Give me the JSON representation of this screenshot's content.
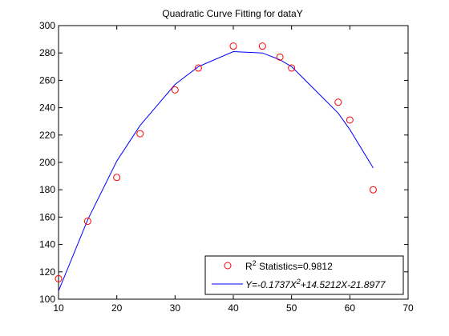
{
  "chart_data": {
    "type": "scatter",
    "title": "Quadratic Curve Fitting for dataY",
    "xlabel": "",
    "ylabel": "",
    "xlim": [
      10,
      70
    ],
    "ylim": [
      100,
      300
    ],
    "xticks": [
      10,
      20,
      30,
      40,
      50,
      60,
      70
    ],
    "yticks": [
      100,
      120,
      140,
      160,
      180,
      200,
      220,
      240,
      260,
      280,
      300
    ],
    "grid": false,
    "legend_position": "bottom-right",
    "series": [
      {
        "kind": "scatter",
        "marker": "circle",
        "color": "#ff0000",
        "x": [
          10,
          15,
          20,
          24,
          30,
          34,
          40,
          45,
          48,
          50,
          58,
          60,
          64
        ],
        "y": [
          115,
          157,
          189,
          221,
          253,
          269,
          285,
          285,
          277,
          269,
          244,
          231,
          180
        ]
      },
      {
        "kind": "line",
        "color": "#0000ff",
        "x": [
          10,
          15,
          20,
          24,
          30,
          34,
          40,
          45,
          48,
          50,
          58,
          60,
          64
        ],
        "y": [
          106,
          158,
          201,
          227,
          257,
          270,
          281,
          280,
          275,
          270,
          236,
          224,
          196
        ]
      }
    ],
    "legend": {
      "r2_base": "R",
      "r2_sup": "2",
      "r2_rest": " Statistics=0.9812",
      "eq_part1": "Y=-0.1737X",
      "eq_sup": "2",
      "eq_part2": "+14.5212X-21.8977"
    }
  }
}
